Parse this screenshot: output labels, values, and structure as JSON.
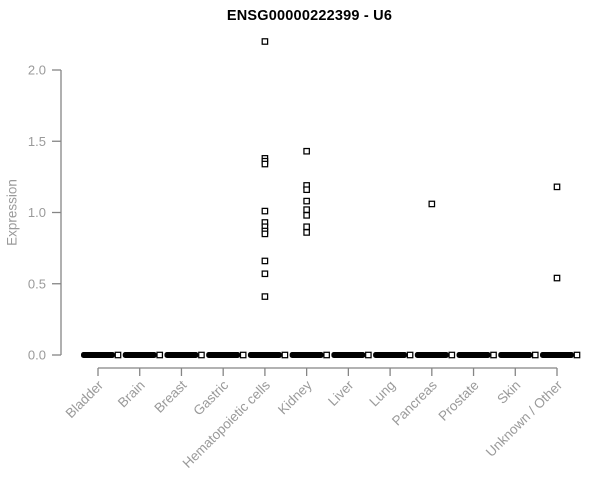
{
  "chart_data": {
    "type": "scatter",
    "title": "ENSG00000222399 - U6",
    "ylabel": "Expression",
    "xlabel": "",
    "ylim": [
      0.0,
      2.25
    ],
    "yticks": [
      0.0,
      0.5,
      1.0,
      1.5,
      2.0
    ],
    "ytick_labels": [
      "0.0",
      "0.5",
      "1.0",
      "1.5",
      "2.0"
    ],
    "grid": false,
    "legend": "none",
    "marker": "open-square",
    "categories": [
      "Bladder",
      "Brain",
      "Breast",
      "Gastric",
      "Hematopoietic cells",
      "Kidney",
      "Liver",
      "Lung",
      "Pancreas",
      "Prostate",
      "Skin",
      "Unknown / Other"
    ],
    "series": [
      {
        "category": "Bladder",
        "values": [],
        "zero_cluster_dash": true
      },
      {
        "category": "Brain",
        "values": [],
        "zero_cluster_dash": true
      },
      {
        "category": "Breast",
        "values": [],
        "zero_cluster_dash": true
      },
      {
        "category": "Gastric",
        "values": [],
        "zero_cluster_dash": true
      },
      {
        "category": "Hematopoietic cells",
        "values": [
          2.2,
          1.38,
          1.36,
          1.34,
          1.01,
          0.93,
          0.9,
          0.87,
          0.85,
          0.66,
          0.57,
          0.41
        ],
        "zero_cluster_dash": true
      },
      {
        "category": "Kidney",
        "values": [
          1.43,
          1.19,
          1.16,
          1.08,
          1.02,
          0.98,
          0.9,
          0.86
        ],
        "zero_cluster_dash": true
      },
      {
        "category": "Liver",
        "values": [],
        "zero_cluster_dash": true
      },
      {
        "category": "Lung",
        "values": [],
        "zero_cluster_dash": true
      },
      {
        "category": "Pancreas",
        "values": [
          1.06
        ],
        "zero_cluster_dash": true
      },
      {
        "category": "Prostate",
        "values": [],
        "zero_cluster_dash": true
      },
      {
        "category": "Skin",
        "values": [],
        "zero_cluster_dash": true
      },
      {
        "category": "Unknown / Other",
        "values": [
          1.18,
          0.54
        ],
        "zero_cluster_dash": true
      }
    ],
    "colors": {
      "title": "#000000",
      "axis_line": "#858585",
      "tick_text": "#9a9a9a",
      "point_stroke": "#000000",
      "point_fill": "#ffffff",
      "zero_dash": "#000000",
      "background": "#ffffff"
    }
  }
}
